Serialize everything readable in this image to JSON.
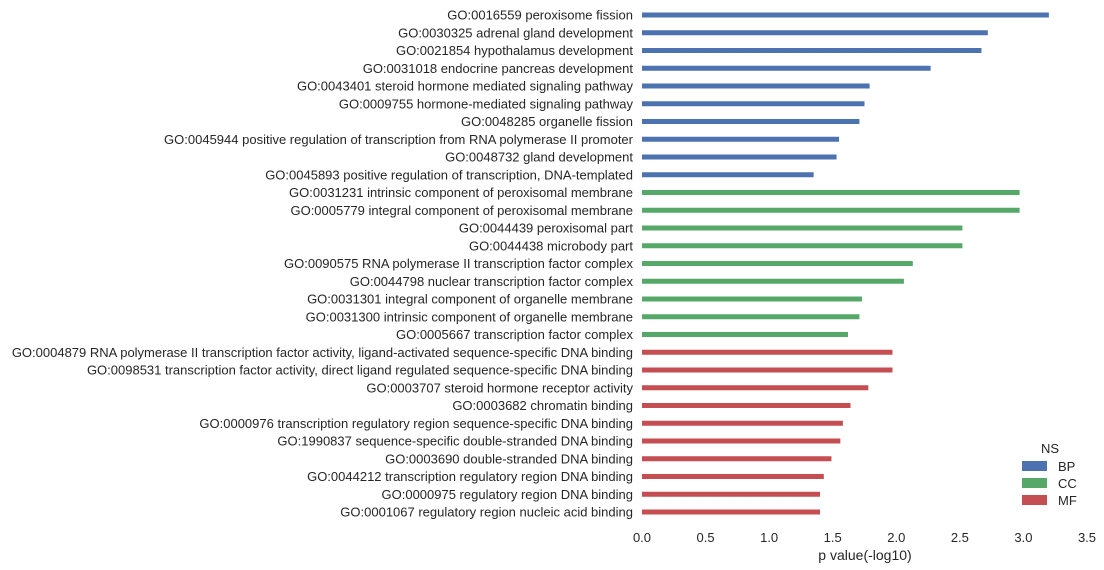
{
  "chart_data": {
    "type": "bar",
    "orientation": "horizontal",
    "xlabel": "p value(-log10)",
    "xlim": [
      0,
      3.5
    ],
    "xticks": [
      "0.0",
      "0.5",
      "1.0",
      "1.5",
      "2.0",
      "2.5",
      "3.0",
      "3.5"
    ],
    "grid": false,
    "legend": {
      "title": "NS",
      "placement": "bottom-right",
      "entries": [
        "BP",
        "CC",
        "MF"
      ]
    },
    "colors": {
      "BP": "#4C72B0",
      "CC": "#55A868",
      "MF": "#C44E52"
    },
    "categories": [
      "GO:0016559 peroxisome fission",
      "GO:0030325 adrenal gland development",
      "GO:0021854 hypothalamus development",
      "GO:0031018 endocrine pancreas development",
      "GO:0043401 steroid hormone mediated signaling pathway",
      "GO:0009755 hormone-mediated signaling pathway",
      "GO:0048285 organelle fission",
      "GO:0045944 positive regulation of transcription from RNA polymerase II promoter",
      "GO:0048732 gland development",
      "GO:0045893 positive regulation of transcription, DNA-templated",
      "GO:0031231 intrinsic component of peroxisomal membrane",
      "GO:0005779 integral component of peroxisomal membrane",
      "GO:0044439 peroxisomal part",
      "GO:0044438 microbody part",
      "GO:0090575 RNA polymerase II transcription factor complex",
      "GO:0044798 nuclear transcription factor complex",
      "GO:0031301 integral component of organelle membrane",
      "GO:0031300 intrinsic component of organelle membrane",
      "GO:0005667 transcription factor complex",
      "GO:0004879 RNA polymerase II transcription factor activity, ligand-activated sequence-specific DNA binding",
      "GO:0098531 transcription factor activity, direct ligand regulated sequence-specific DNA binding",
      "GO:0003707 steroid hormone receptor activity",
      "GO:0003682 chromatin binding",
      "GO:0000976 transcription regulatory region sequence-specific DNA binding",
      "GO:1990837 sequence-specific double-stranded DNA binding",
      "GO:0003690 double-stranded DNA binding",
      "GO:0044212 transcription regulatory region DNA binding",
      "GO:0000975 regulatory region DNA binding",
      "GO:0001067 regulatory region nucleic acid binding"
    ],
    "values": [
      3.2,
      2.72,
      2.67,
      2.27,
      1.79,
      1.75,
      1.71,
      1.55,
      1.53,
      1.35,
      2.97,
      2.97,
      2.52,
      2.52,
      2.13,
      2.06,
      1.73,
      1.71,
      1.62,
      1.97,
      1.97,
      1.78,
      1.64,
      1.58,
      1.56,
      1.49,
      1.43,
      1.4,
      1.4
    ],
    "groups": [
      "BP",
      "BP",
      "BP",
      "BP",
      "BP",
      "BP",
      "BP",
      "BP",
      "BP",
      "BP",
      "CC",
      "CC",
      "CC",
      "CC",
      "CC",
      "CC",
      "CC",
      "CC",
      "CC",
      "MF",
      "MF",
      "MF",
      "MF",
      "MF",
      "MF",
      "MF",
      "MF",
      "MF",
      "MF"
    ]
  }
}
